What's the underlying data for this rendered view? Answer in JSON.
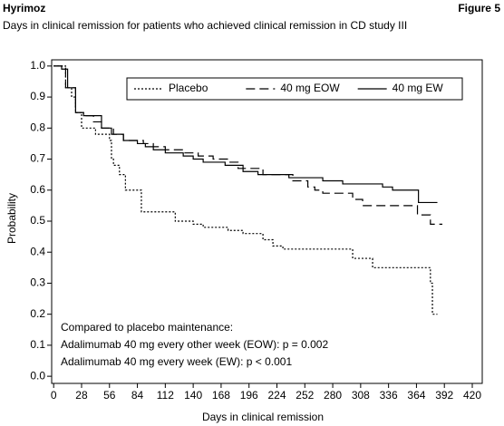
{
  "header": {
    "left": "Hyrimoz",
    "right": "Figure 5"
  },
  "chart_data": {
    "type": "step",
    "title": "Days in clinical remission for patients who achieved clinical remission in CD study III",
    "x_label": "Days in clinical remission",
    "y_label": "Probability",
    "xlim": [
      -2,
      430
    ],
    "ylim": [
      -0.023,
      1.02
    ],
    "xticks": [
      0,
      28,
      56,
      84,
      112,
      140,
      168,
      196,
      224,
      252,
      280,
      308,
      336,
      364,
      392,
      420
    ],
    "yticks": [
      {
        "value": 0,
        "label": "0.0"
      },
      0.1,
      0.2,
      0.3,
      0.4,
      0.5,
      0.6,
      0.7,
      0.8,
      0.9,
      {
        "value": 1,
        "label": "1.0"
      }
    ],
    "legend": "upper-right",
    "series": [
      {
        "name": "Placebo",
        "color": "#000000",
        "line_style": "dotted",
        "x": [
          0,
          12,
          18,
          22,
          28,
          42,
          56,
          58,
          60,
          66,
          72,
          88,
          122,
          140,
          150,
          175,
          190,
          210,
          220,
          230,
          300,
          320,
          378,
          380,
          385
        ],
        "values": [
          1.0,
          0.93,
          0.9,
          0.85,
          0.8,
          0.78,
          0.76,
          0.7,
          0.68,
          0.65,
          0.6,
          0.53,
          0.5,
          0.49,
          0.48,
          0.47,
          0.46,
          0.44,
          0.42,
          0.41,
          0.38,
          0.35,
          0.3,
          0.2,
          0.2
        ]
      },
      {
        "name": "40 mg EOW",
        "color": "#000000",
        "line_style": "dashed",
        "x": [
          0,
          12,
          22,
          30,
          40,
          48,
          60,
          70,
          90,
          100,
          112,
          130,
          145,
          160,
          175,
          185,
          210,
          240,
          255,
          262,
          270,
          300,
          310,
          365,
          378,
          390
        ],
        "values": [
          1.0,
          0.93,
          0.85,
          0.84,
          0.82,
          0.8,
          0.78,
          0.76,
          0.75,
          0.74,
          0.73,
          0.72,
          0.71,
          0.7,
          0.69,
          0.67,
          0.65,
          0.63,
          0.61,
          0.6,
          0.59,
          0.57,
          0.55,
          0.52,
          0.49,
          0.49
        ]
      },
      {
        "name": "40 mg EW",
        "color": "#000000",
        "line_style": "solid",
        "x": [
          0,
          8,
          14,
          22,
          30,
          48,
          58,
          70,
          84,
          92,
          100,
          112,
          130,
          140,
          150,
          172,
          190,
          205,
          236,
          270,
          290,
          330,
          340,
          366,
          385
        ],
        "values": [
          1.0,
          0.99,
          0.93,
          0.85,
          0.84,
          0.8,
          0.78,
          0.76,
          0.75,
          0.74,
          0.73,
          0.72,
          0.71,
          0.7,
          0.69,
          0.68,
          0.66,
          0.65,
          0.64,
          0.63,
          0.62,
          0.61,
          0.6,
          0.56,
          0.56
        ]
      }
    ],
    "annotations": [
      "Compared to placebo maintenance:",
      "Adalimumab 40 mg every other week (EOW): p = 0.002",
      "Adalimumab 40 mg every week (EW): p < 0.001"
    ]
  }
}
